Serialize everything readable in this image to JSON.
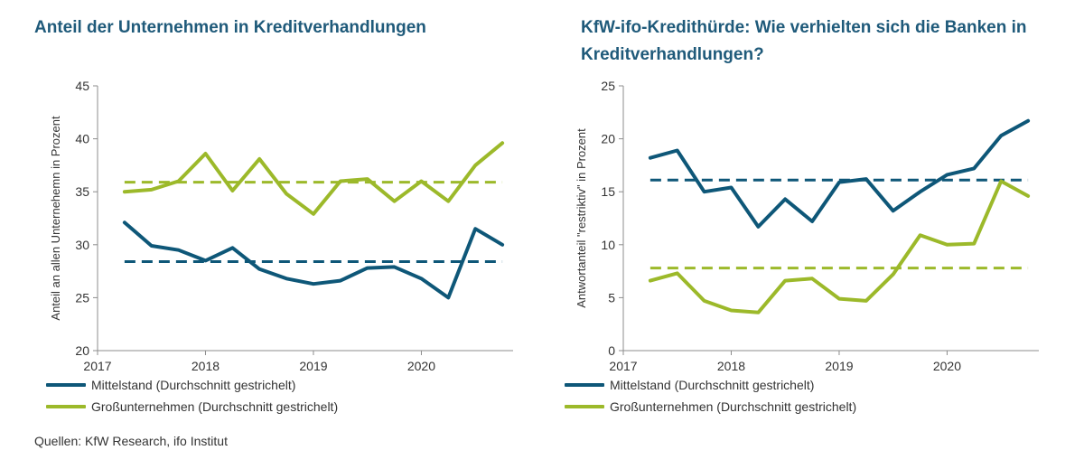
{
  "colors": {
    "mittelstand": "#0e5778",
    "gross": "#9cb92a",
    "title": "#1f5a7a"
  },
  "left": {
    "title": "Anteil der Unternehmen in Kreditverhandlungen",
    "legend": [
      "Mittelstand (Durchschnitt gestrichelt)",
      "Großunternehmen (Durchschnitt gestrichelt)"
    ]
  },
  "right": {
    "title": "KfW-ifo-Kredithürde: Wie verhielten sich die Banken in Kreditverhandlungen?",
    "legend": [
      "Mittelstand (Durchschnitt gestrichelt)",
      "Großunternehmen (Durchschnitt gestrichelt)"
    ]
  },
  "source": "Quellen: KfW Research, ifo Institut",
  "chart_data": [
    {
      "type": "line",
      "title": "Anteil der Unternehmen in Kreditverhandlungen",
      "ylabel": "Anteil an allen Unternehemn in Prozent",
      "xlabel": "",
      "x": [
        2017.25,
        2017.5,
        2017.75,
        2018.0,
        2018.25,
        2018.5,
        2018.75,
        2019.0,
        2019.25,
        2019.5,
        2019.75,
        2020.0,
        2020.25,
        2020.5,
        2020.75
      ],
      "xlim": [
        2017,
        2020.85
      ],
      "xticks": [
        2017,
        2018,
        2019,
        2020
      ],
      "xtick_labels": [
        "2017",
        "2018",
        "2019",
        "2020"
      ],
      "ylim": [
        20,
        45
      ],
      "yticks": [
        20,
        25,
        30,
        35,
        40,
        45
      ],
      "grid": false,
      "series": [
        {
          "name": "Mittelstand (Durchschnitt gestrichelt)",
          "color": "#0e5778",
          "average": 28.4,
          "values": [
            32.1,
            29.9,
            29.5,
            28.5,
            29.7,
            27.7,
            26.8,
            26.3,
            26.6,
            27.8,
            27.9,
            26.8,
            25.0,
            31.5,
            30.0
          ]
        },
        {
          "name": "Großunternehmen (Durchschnitt gestrichelt)",
          "color": "#9cb92a",
          "average": 35.9,
          "values": [
            35.0,
            35.2,
            36.0,
            38.6,
            35.1,
            38.1,
            34.8,
            32.9,
            36.0,
            36.2,
            34.1,
            36.0,
            34.1,
            37.5,
            39.6
          ]
        }
      ]
    },
    {
      "type": "line",
      "title": "KfW-ifo-Kredithürde: Wie verhielten sich die Banken in Kreditverhandlungen?",
      "ylabel": "Antwortanteil \"restriktiv\" in Prozent",
      "xlabel": "",
      "x": [
        2017.25,
        2017.5,
        2017.75,
        2018.0,
        2018.25,
        2018.5,
        2018.75,
        2019.0,
        2019.25,
        2019.5,
        2019.75,
        2020.0,
        2020.25,
        2020.5,
        2020.75
      ],
      "xlim": [
        2017,
        2020.85
      ],
      "xticks": [
        2017,
        2018,
        2019,
        2020
      ],
      "xtick_labels": [
        "2017",
        "2018",
        "2019",
        "2020"
      ],
      "ylim": [
        0,
        25
      ],
      "yticks": [
        0,
        5,
        10,
        15,
        20,
        25
      ],
      "grid": false,
      "series": [
        {
          "name": "Mittelstand (Durchschnitt gestrichelt)",
          "color": "#0e5778",
          "average": 16.1,
          "values": [
            18.2,
            18.9,
            15.0,
            15.4,
            11.7,
            14.3,
            12.2,
            15.9,
            16.2,
            13.2,
            15.0,
            16.6,
            17.2,
            20.3,
            21.7
          ]
        },
        {
          "name": "Großunternehmen (Durchschnitt gestrichelt)",
          "color": "#9cb92a",
          "average": 7.8,
          "values": [
            6.6,
            7.3,
            4.7,
            3.8,
            3.6,
            6.6,
            6.8,
            4.9,
            4.7,
            7.2,
            10.9,
            10.0,
            10.1,
            16.0,
            14.6
          ]
        }
      ]
    }
  ]
}
